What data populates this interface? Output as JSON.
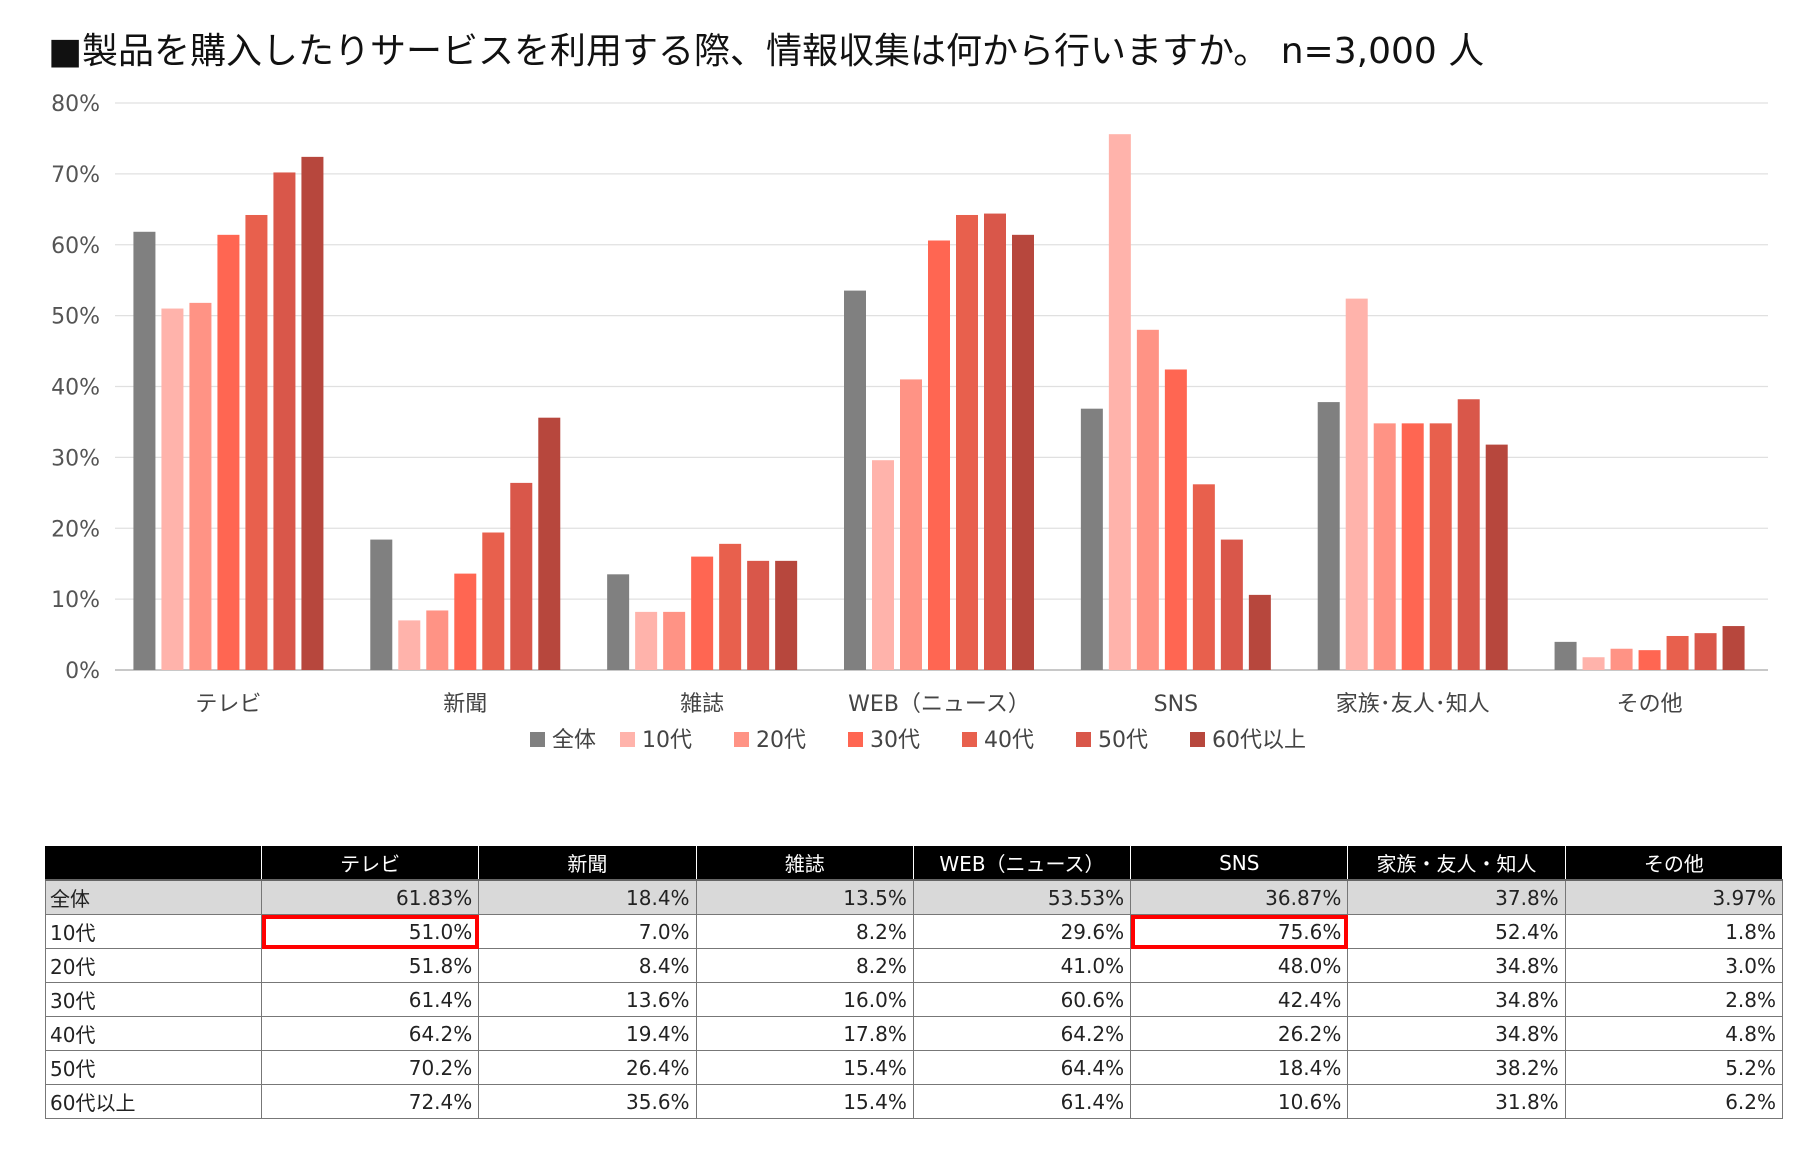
{
  "title": "■製品を購入したりサービスを利用する際、情報収集は何から行いますか。 n=3,000 人",
  "chart_data": {
    "type": "bar",
    "categories": [
      "テレビ",
      "新聞",
      "雑誌",
      "WEB（ニュース）",
      "SNS",
      "家族･友人･知人",
      "その他"
    ],
    "series": [
      {
        "name": "全体",
        "color": "#808080",
        "values": [
          61.83,
          18.4,
          13.5,
          53.53,
          36.87,
          37.8,
          3.97
        ]
      },
      {
        "name": "10代",
        "color": "#ffb3ab",
        "values": [
          51.0,
          7.0,
          8.2,
          29.6,
          75.6,
          52.4,
          1.8
        ]
      },
      {
        "name": "20代",
        "color": "#ff9385",
        "values": [
          51.8,
          8.4,
          8.2,
          41.0,
          48.0,
          34.8,
          3.0
        ]
      },
      {
        "name": "30代",
        "color": "#ff6652",
        "values": [
          61.4,
          13.6,
          16.0,
          60.6,
          42.4,
          34.8,
          2.8
        ]
      },
      {
        "name": "40代",
        "color": "#e8604d",
        "values": [
          64.2,
          19.4,
          17.8,
          64.2,
          26.2,
          34.8,
          4.8
        ]
      },
      {
        "name": "50代",
        "color": "#d9574a",
        "values": [
          70.2,
          26.4,
          15.4,
          64.4,
          18.4,
          38.2,
          5.2
        ]
      },
      {
        "name": "60代以上",
        "color": "#b7473d",
        "values": [
          72.4,
          35.6,
          15.4,
          61.4,
          10.6,
          31.8,
          6.2
        ]
      }
    ],
    "y_ticks": [
      "0%",
      "10%",
      "20%",
      "30%",
      "40%",
      "50%",
      "60%",
      "70%",
      "80%"
    ],
    "ylim": [
      0,
      80
    ],
    "grid": true,
    "legend_position": "bottom"
  },
  "table": {
    "headers": [
      "",
      "テレビ",
      "新聞",
      "雑誌",
      "WEB（ニュース）",
      "SNS",
      "家族・友人・知人",
      "その他"
    ],
    "rows": [
      [
        "全体",
        "61.83%",
        "18.4%",
        "13.5%",
        "53.53%",
        "36.87%",
        "37.8%",
        "3.97%"
      ],
      [
        "10代",
        "51.0%",
        "7.0%",
        "8.2%",
        "29.6%",
        "75.6%",
        "52.4%",
        "1.8%"
      ],
      [
        "20代",
        "51.8%",
        "8.4%",
        "8.2%",
        "41.0%",
        "48.0%",
        "34.8%",
        "3.0%"
      ],
      [
        "30代",
        "61.4%",
        "13.6%",
        "16.0%",
        "60.6%",
        "42.4%",
        "34.8%",
        "2.8%"
      ],
      [
        "40代",
        "64.2%",
        "19.4%",
        "17.8%",
        "64.2%",
        "26.2%",
        "34.8%",
        "4.8%"
      ],
      [
        "50代",
        "70.2%",
        "26.4%",
        "15.4%",
        "64.4%",
        "18.4%",
        "38.2%",
        "5.2%"
      ],
      [
        "60代以上",
        "72.4%",
        "35.6%",
        "15.4%",
        "61.4%",
        "10.6%",
        "31.8%",
        "6.2%"
      ]
    ],
    "highlighted_cells": [
      [
        1,
        1
      ],
      [
        1,
        5
      ]
    ],
    "highlight_color": "#ff0000"
  }
}
